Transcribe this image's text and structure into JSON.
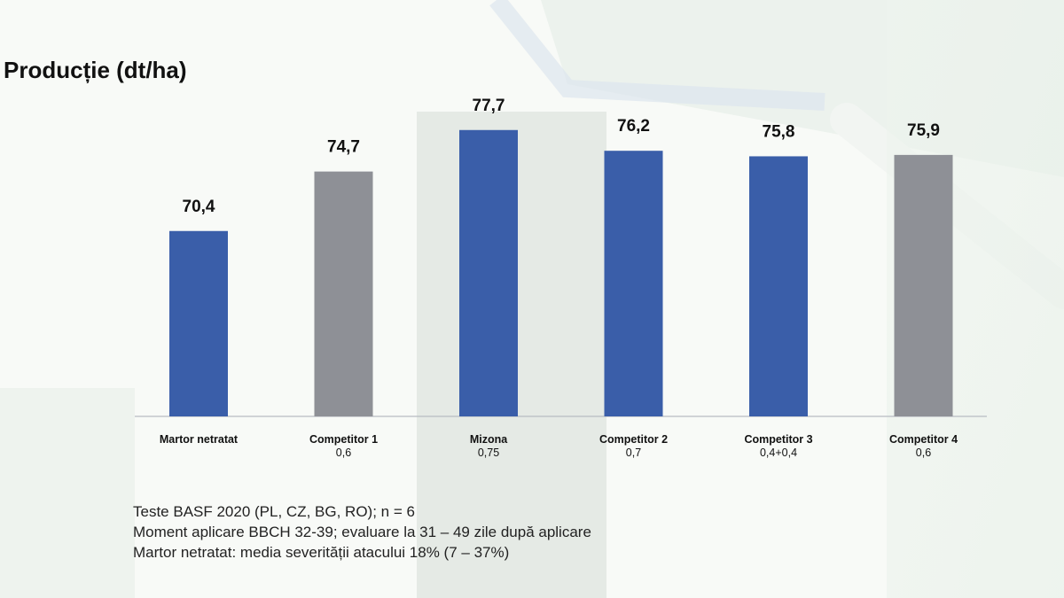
{
  "title": "Producție (dt/ha)",
  "colors": {
    "blue": "#3a5ea9",
    "gray": "#8e9096",
    "highlight": "#e2e6e2"
  },
  "chart_data": {
    "type": "bar",
    "title": "Producție (dt/ha)",
    "xlabel": "",
    "ylabel": "",
    "ylim": [
      57,
      80
    ],
    "grid": false,
    "highlighted_category": "Mizona",
    "categories": [
      {
        "label": "Martor netratat",
        "sub": "",
        "value": 70.4,
        "value_label": "70,4",
        "color": "blue"
      },
      {
        "label": "Competitor 1",
        "sub": "0,6",
        "value": 74.7,
        "value_label": "74,7",
        "color": "gray"
      },
      {
        "label": "Mizona",
        "sub": "0,75",
        "value": 77.7,
        "value_label": "77,7",
        "color": "blue"
      },
      {
        "label": "Competitor 2",
        "sub": "0,7",
        "value": 76.2,
        "value_label": "76,2",
        "color": "blue"
      },
      {
        "label": "Competitor 3",
        "sub": "0,4+0,4",
        "value": 75.8,
        "value_label": "75,8",
        "color": "blue"
      },
      {
        "label": "Competitor 4",
        "sub": "0,6",
        "value": 75.9,
        "value_label": "75,9",
        "color": "gray"
      }
    ]
  },
  "notes": [
    "Teste BASF 2020 (PL, CZ, BG, RO); n = 6",
    "Moment aplicare BBCH 32-39; evaluare la 31 – 49 zile după aplicare",
    "Martor netratat: media severității atacului 18% (7 – 37%)"
  ]
}
